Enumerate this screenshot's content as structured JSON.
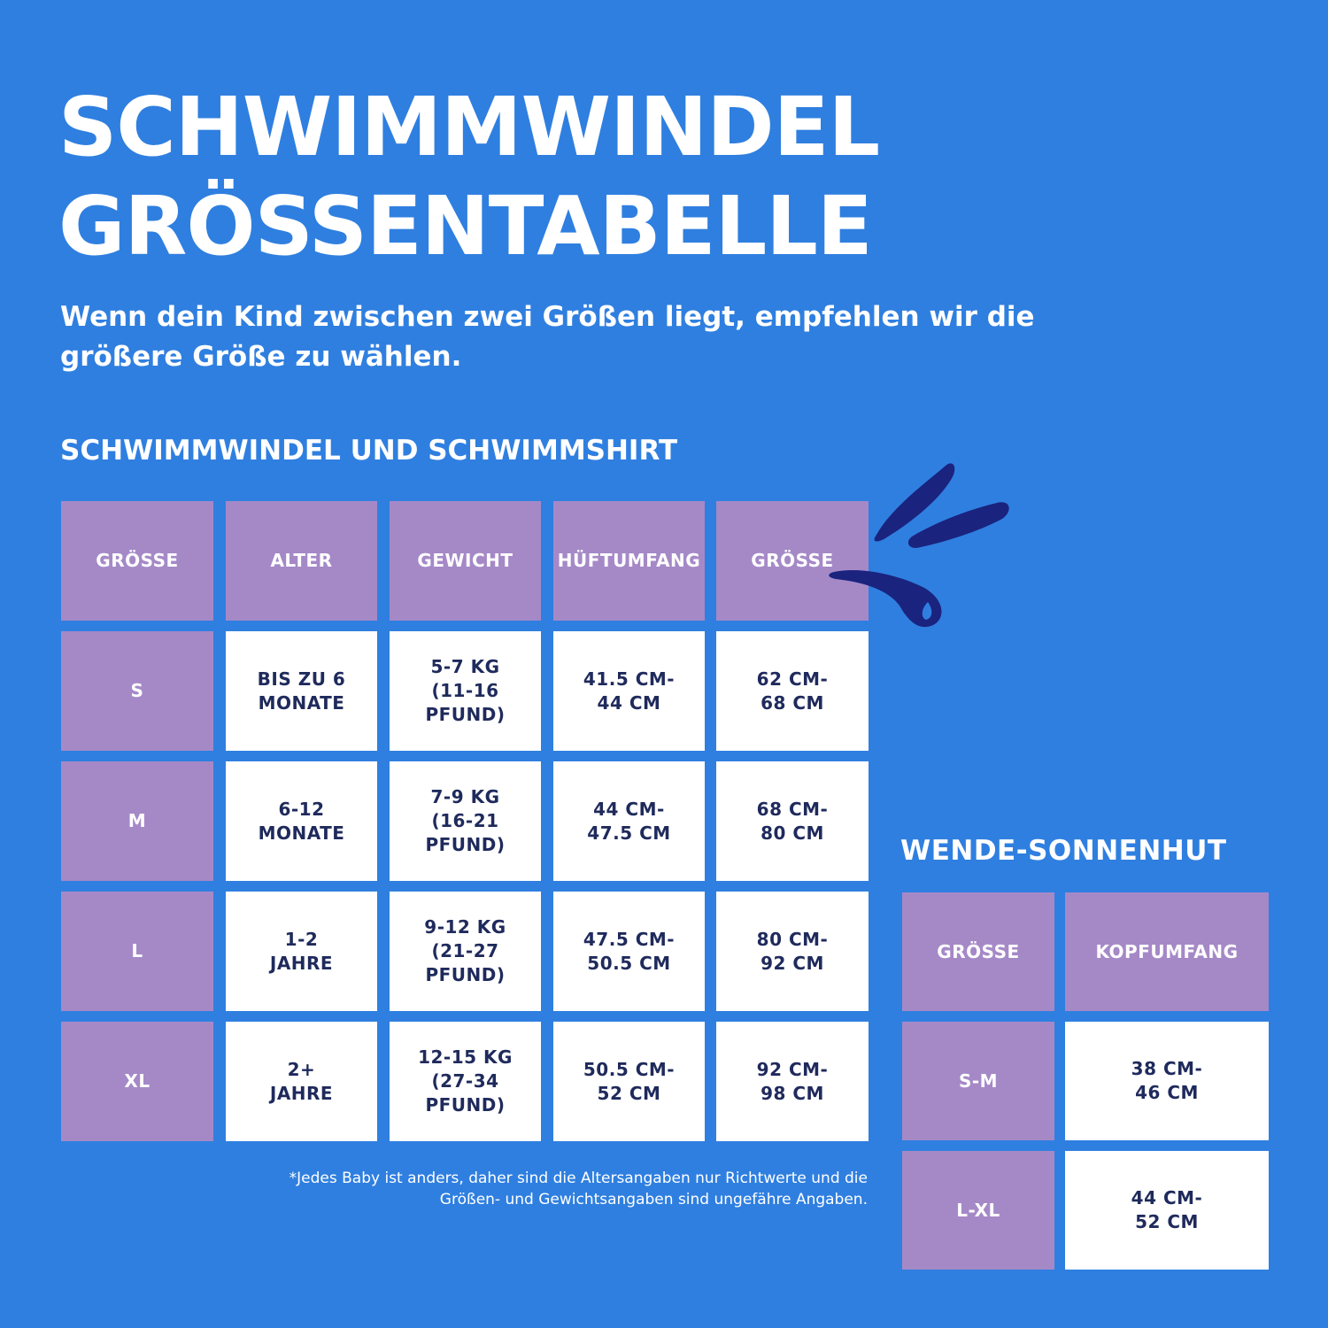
{
  "colors": {
    "background": "#2f7fe0",
    "header_cell": "#a589c7",
    "data_cell": "#ffffff",
    "data_text": "#1f2a5c",
    "splash": "#1a237e"
  },
  "header": {
    "title_line1": "SCHWIMMWINDEL",
    "title_line2": "GRÖSSENTABELLE",
    "subtitle": "Wenn dein Kind zwischen zwei Größen liegt, empfehlen wir die größere Größe zu wählen."
  },
  "table1": {
    "heading": "SCHWIMMWINDEL UND SCHWIMMSHIRT",
    "columns": [
      "GRÖSSE",
      "ALTER",
      "GEWICHT",
      "HÜFTUMFANG",
      "GRÖSSE"
    ],
    "rows": [
      [
        "S",
        "BIS ZU 6\nMONATE",
        "5-7 KG\n(11-16 PFUND)",
        "41.5 CM-\n44 CM",
        "62 CM-\n68 CM"
      ],
      [
        "M",
        "6-12\nMONATE",
        "7-9 KG\n(16-21 PFUND)",
        "44 CM-\n47.5 CM",
        "68 CM-\n80 CM"
      ],
      [
        "L",
        "1-2\nJAHRE",
        "9-12 KG\n(21-27 PFUND)",
        "47.5 CM-\n50.5 CM",
        "80 CM-\n92 CM"
      ],
      [
        "XL",
        "2+\nJAHRE",
        "12-15 KG\n(27-34 PFUND)",
        "50.5 CM-\n52 CM",
        "92 CM-\n98 CM"
      ]
    ],
    "footnote": "*Jedes Baby ist anders, daher sind die Altersangaben nur Richtwerte und die Größen- und Gewichtsangaben sind ungefähre Angaben."
  },
  "table2": {
    "heading": "WENDE-SONNENHUT",
    "columns": [
      "GRÖSSE",
      "KOPFUMFANG"
    ],
    "rows": [
      [
        "S-M",
        "38 CM-\n46 CM"
      ],
      [
        "L-XL",
        "44 CM-\n52 CM"
      ]
    ]
  },
  "decor": {
    "splash_icon": "water-splash-icon"
  }
}
